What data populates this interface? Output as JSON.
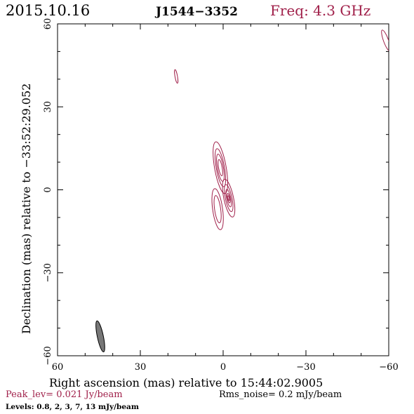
{
  "header": {
    "date": "2015.10.16",
    "source": "J1544−3352",
    "freq": "Freq: 4.3 GHz"
  },
  "footer": {
    "peak": "Peak_lev=  0.021 Jy/beam",
    "rms": "Rms_noise=   0.2 mJy/beam",
    "levels": "Levels: 0.8,    2,    3,    7,   13 mJy/beam"
  },
  "colors": {
    "accent": "#a0204a",
    "contour": "#a0204a",
    "beam_fill": "#777777",
    "axis": "#000000"
  },
  "chart_data": {
    "type": "contour",
    "title": "J1544−3352",
    "xlabel": "Right ascension (mas) relative to 15:44:02.9005",
    "ylabel": "Declination (mas) relative to −33:52:29.052",
    "xlim": [
      60,
      -60
    ],
    "ylim": [
      -60,
      60
    ],
    "xticks": [
      "60",
      "30",
      "0",
      "−30",
      "−60"
    ],
    "yticks": [
      "−60",
      "−30",
      "0",
      "30",
      "60"
    ],
    "xtick_values": [
      60,
      30,
      0,
      -30,
      -60
    ],
    "ytick_values": [
      -60,
      -30,
      0,
      30,
      60
    ],
    "levels_mjy": [
      0.8,
      2,
      3,
      7,
      13
    ],
    "peak_jy": 0.021,
    "rms_mjy": 0.2,
    "beam": {
      "x": 44.5,
      "y": -53,
      "major": 11.5,
      "minor": 2.2,
      "pa_deg": -12
    },
    "components": [
      {
        "x": 1,
        "y": 8,
        "ellipses": [
          {
            "major": 19,
            "minor": 4.2,
            "pa": -10,
            "level": 0.8
          },
          {
            "major": 14,
            "minor": 3.0,
            "pa": -10,
            "level": 2
          },
          {
            "major": 10,
            "minor": 2.2,
            "pa": -10,
            "level": 3
          },
          {
            "major": 6,
            "minor": 1.3,
            "pa": -10,
            "level": 7
          }
        ]
      },
      {
        "x": -2,
        "y": -3,
        "ellipses": [
          {
            "major": 14,
            "minor": 3.5,
            "pa": -12,
            "level": 0.8
          },
          {
            "major": 10,
            "minor": 2.4,
            "pa": -12,
            "level": 2
          },
          {
            "major": 6.5,
            "minor": 1.5,
            "pa": -12,
            "level": 3
          },
          {
            "major": 3.5,
            "minor": 0.9,
            "pa": -12,
            "level": 7
          },
          {
            "major": 1.8,
            "minor": 0.5,
            "pa": -12,
            "level": 13
          }
        ]
      },
      {
        "x": 2,
        "y": -7,
        "ellipses": [
          {
            "major": 15,
            "minor": 3.6,
            "pa": -8,
            "level": 0.8
          },
          {
            "major": 10,
            "minor": 2.2,
            "pa": -8,
            "level": 2
          }
        ]
      },
      {
        "x": 17,
        "y": 41,
        "ellipses": [
          {
            "major": 5,
            "minor": 0.9,
            "pa": -10,
            "level": 0.8
          }
        ]
      },
      {
        "x": -59,
        "y": 54,
        "ellipses": [
          {
            "major": 8,
            "minor": 1.8,
            "pa": -20,
            "level": 0.8
          }
        ]
      }
    ]
  }
}
